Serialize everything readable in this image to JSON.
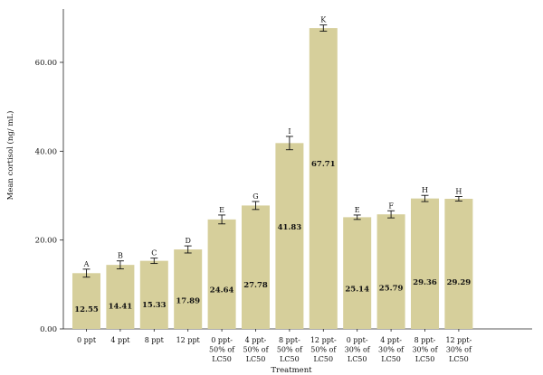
{
  "chart_data": {
    "type": "bar",
    "xlabel": "Treatment",
    "ylabel": "Mean cortisol (ng/ mL)",
    "ylim": [
      0,
      72
    ],
    "yticks": [
      0,
      20,
      40,
      60
    ],
    "ytick_labels": [
      "0.00",
      "20.00",
      "40.00",
      "60.00"
    ],
    "grid": false,
    "bar_color": "#d6cf9b",
    "categories": [
      [
        "0 ppt"
      ],
      [
        "4 ppt"
      ],
      [
        "8 ppt"
      ],
      [
        "12 ppt"
      ],
      [
        "0 ppt-",
        "50% of",
        "LC50"
      ],
      [
        "4 ppt-",
        "50% of",
        "LC50"
      ],
      [
        "8 ppt-",
        "50% of",
        "LC50"
      ],
      [
        "12 ppt-",
        "50% of",
        "LC50"
      ],
      [
        "0 ppt-",
        "30% of",
        "LC50"
      ],
      [
        "4 ppt-",
        "30% of",
        "LC50"
      ],
      [
        "8 ppt-",
        "30% of",
        "LC50"
      ],
      [
        "12 ppt-",
        "30% of",
        "LC50"
      ]
    ],
    "values": [
      12.55,
      14.41,
      15.33,
      17.89,
      24.64,
      27.78,
      41.83,
      67.71,
      25.14,
      25.79,
      29.36,
      29.29
    ],
    "value_labels": [
      "12.55",
      "14.41",
      "15.33",
      "17.89",
      "24.64",
      "27.78",
      "41.83",
      "67.71",
      "25.14",
      "25.79",
      "29.36",
      "29.29"
    ],
    "errors": [
      0.9,
      0.9,
      0.6,
      0.8,
      1.0,
      0.9,
      1.5,
      0.7,
      0.5,
      0.8,
      0.7,
      0.5
    ],
    "significance_letters": [
      "A",
      "B",
      "C",
      "D",
      "E",
      "G",
      "I",
      "K",
      "E",
      "F",
      "H",
      "H"
    ]
  }
}
